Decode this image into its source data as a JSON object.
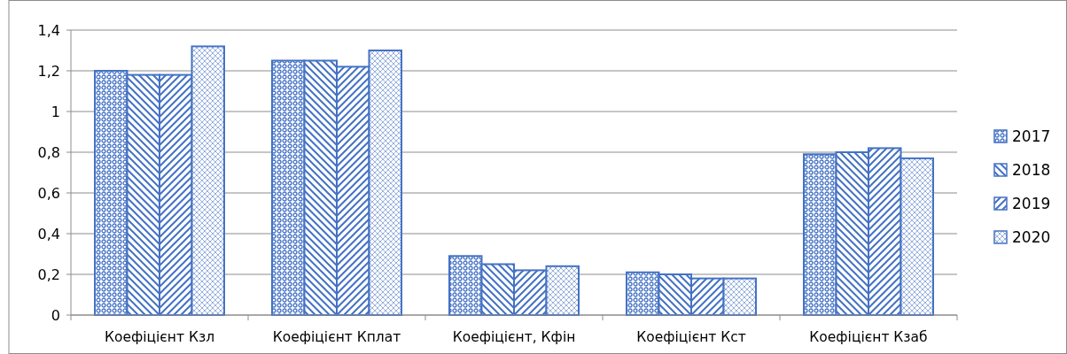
{
  "chart_data": {
    "type": "bar",
    "categories": [
      "Коефіцієнт Кзл",
      "Коефіцієнт Кплат",
      "Коефіцієнт, Кфін",
      "Коефіцієнт Кст",
      "Коефіцієнт Кзаб"
    ],
    "series": [
      {
        "name": "2017",
        "color": "#4472c4",
        "values": [
          1.2,
          1.25,
          0.29,
          0.21,
          0.79
        ]
      },
      {
        "name": "2018",
        "color": "#4472c4",
        "values": [
          1.18,
          1.25,
          0.25,
          0.2,
          0.8
        ]
      },
      {
        "name": "2019",
        "color": "#4472c4",
        "values": [
          1.18,
          1.22,
          0.22,
          0.18,
          0.82
        ]
      },
      {
        "name": "2020",
        "color": "#4472c4",
        "values": [
          1.32,
          1.3,
          0.24,
          0.18,
          0.77
        ]
      }
    ],
    "ylim": [
      0,
      1.4
    ],
    "yticks": [
      0,
      {
        "value": 0.2,
        "label": "0,2"
      },
      {
        "value": 0.4,
        "label": "0,4"
      },
      {
        "value": 0.6,
        "label": "0,6"
      },
      {
        "value": 0.8,
        "label": "0,8"
      },
      1,
      {
        "value": 1.2,
        "label": "1,2"
      },
      {
        "value": 1.4,
        "label": "1,4"
      }
    ],
    "grid": "y",
    "legend": "right"
  }
}
